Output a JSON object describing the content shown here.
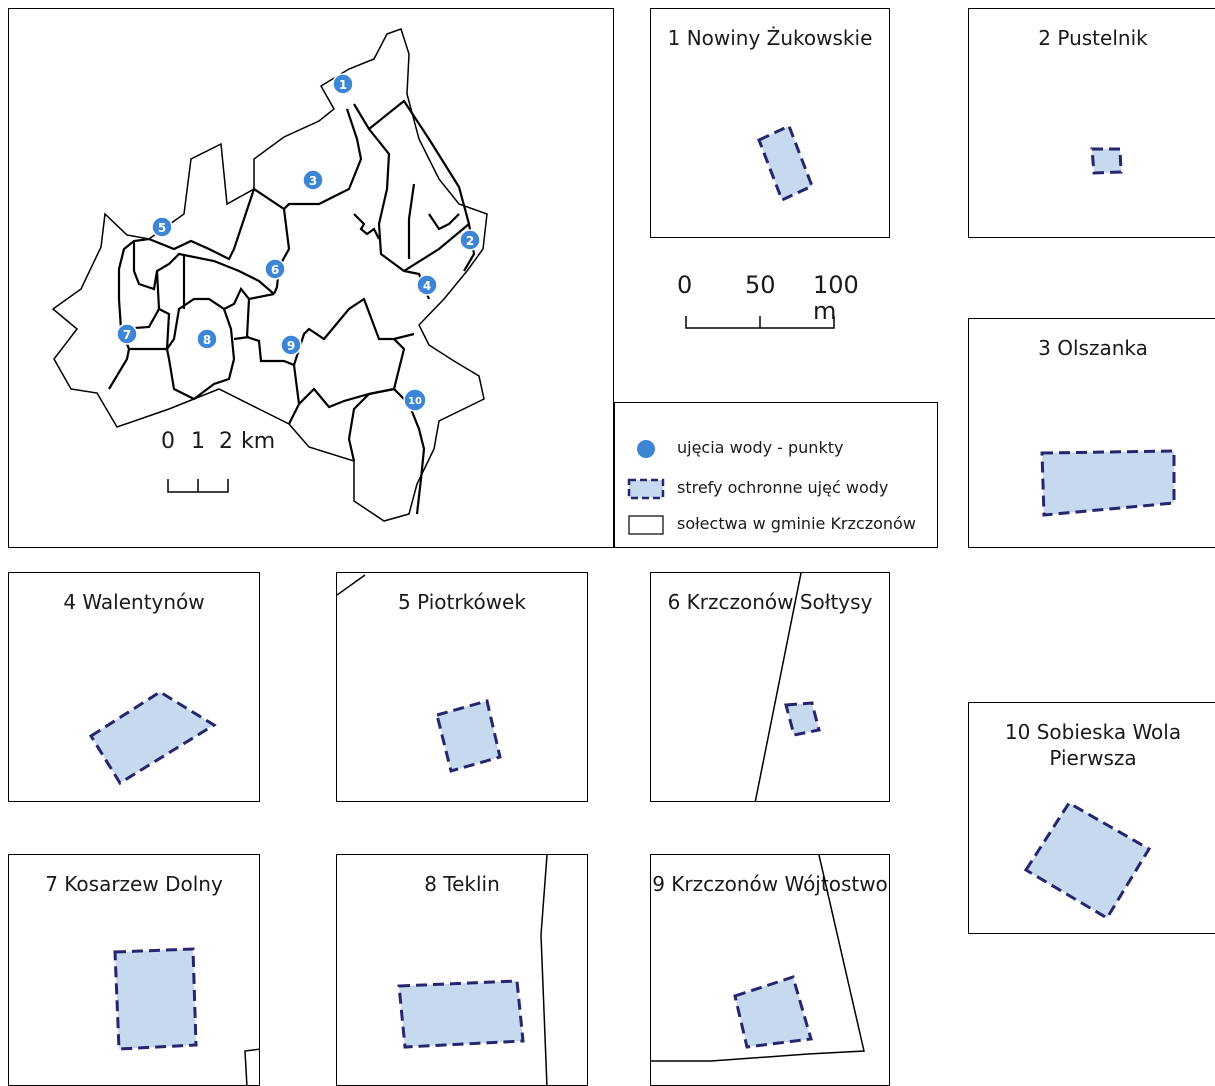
{
  "overview": {
    "well_labels": [
      "1",
      "2",
      "3",
      "4",
      "5",
      "6",
      "7",
      "8",
      "9",
      "10"
    ],
    "scale": {
      "t0": "0",
      "t1": "1",
      "t2": "2",
      "unit": "km"
    }
  },
  "inset_scale": {
    "t0": "0",
    "t1": "50",
    "t2": "100 m"
  },
  "legend": {
    "point_label": "ujęcia wody - punkty",
    "zone_label": "strefy ochronne ujęć wody",
    "boundary_label": "sołectwa w gminie Krzczonów"
  },
  "insets": [
    {
      "title": "1 Nowiny Żukowskie"
    },
    {
      "title": "2 Pustelnik"
    },
    {
      "title": "3 Olszanka"
    },
    {
      "title": "4 Walentynów"
    },
    {
      "title": "5 Piotrkówek"
    },
    {
      "title": "6 Krzczonów Sołtysy"
    },
    {
      "title": "7 Kosarzew Dolny"
    },
    {
      "title": "8 Teklin"
    },
    {
      "title": "9 Krzczonów Wójtostwo"
    },
    {
      "title": "10 Sobieska Wola Pierwsza"
    }
  ],
  "colors": {
    "zone_fill": "#c6d9ef",
    "zone_stroke": "#25266e",
    "well_marker": "#3d86d6"
  }
}
